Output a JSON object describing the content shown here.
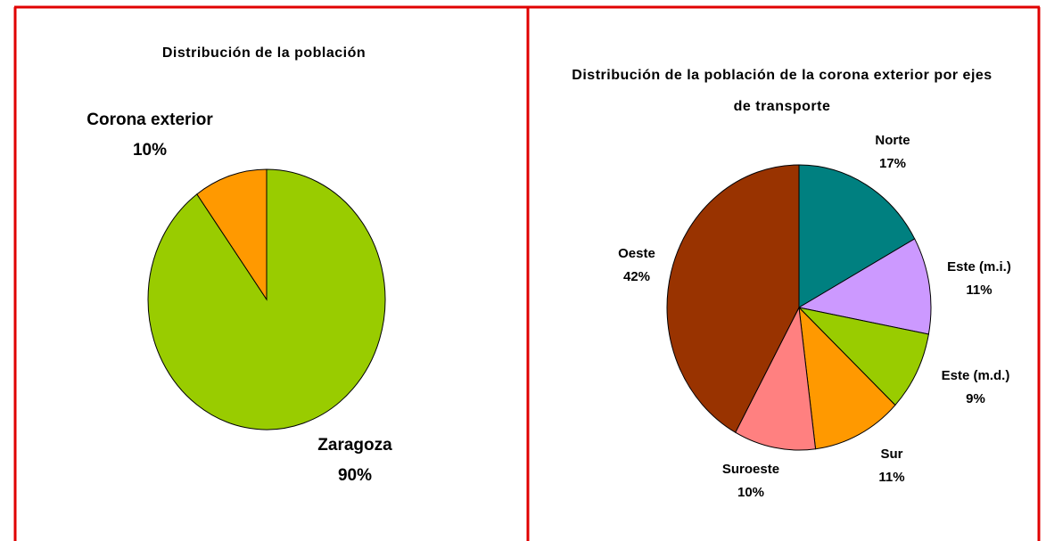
{
  "chart_data": [
    {
      "type": "pie",
      "title": "Distribución de la población",
      "categories": [
        "Zaragoza",
        "Corona exterior"
      ],
      "values": [
        90,
        10
      ],
      "value_labels": [
        "90%",
        "10%"
      ],
      "colors": [
        "#99cc00",
        "#ff9900"
      ]
    },
    {
      "type": "pie",
      "title": "Distribución de la población de la corona exterior por ejes de transporte",
      "categories": [
        "Norte",
        "Este (m.i.)",
        "Este (m.d.)",
        "Sur",
        "Suroeste",
        "Oeste"
      ],
      "values": [
        17,
        11,
        9,
        11,
        10,
        42
      ],
      "value_labels": [
        "17%",
        "11%",
        "9%",
        "11%",
        "10%",
        "42%"
      ],
      "colors": [
        "#008080",
        "#cc99ff",
        "#99cc00",
        "#ff9900",
        "#ff8080",
        "#993300"
      ]
    }
  ]
}
